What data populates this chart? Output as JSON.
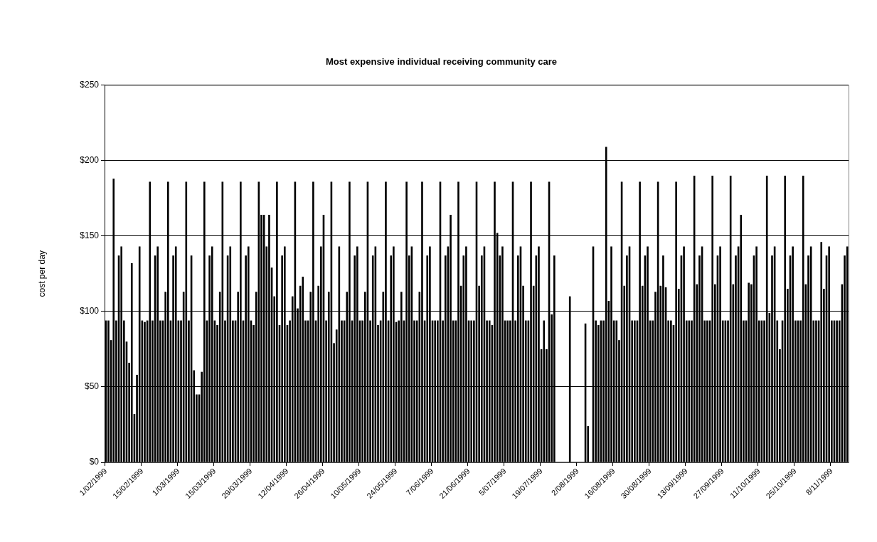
{
  "chart_data": {
    "type": "bar",
    "title": "Most expensive individual receiving community care",
    "ylabel": "cost per day",
    "color": "#000000",
    "grid": "y",
    "ylim": [
      0,
      250
    ],
    "yticks": [
      {
        "value": 0,
        "label": "$0"
      },
      {
        "value": 50,
        "label": "$50"
      },
      {
        "value": 100,
        "label": "$100"
      },
      {
        "value": 150,
        "label": "$150"
      },
      {
        "value": 200,
        "label": "$200"
      },
      {
        "value": 250,
        "label": "$250"
      }
    ],
    "categories": [
      "1/02/1999",
      null,
      null,
      null,
      null,
      null,
      null,
      null,
      null,
      null,
      null,
      null,
      null,
      null,
      "15/02/1999",
      null,
      null,
      null,
      null,
      null,
      null,
      null,
      null,
      null,
      null,
      null,
      null,
      null,
      "1/03/1999",
      null,
      null,
      null,
      null,
      null,
      null,
      null,
      null,
      null,
      null,
      null,
      null,
      null,
      "15/03/1999",
      null,
      null,
      null,
      null,
      null,
      null,
      null,
      null,
      null,
      null,
      null,
      null,
      null,
      "29/03/1999",
      null,
      null,
      null,
      null,
      null,
      null,
      null,
      null,
      null,
      null,
      null,
      null,
      null,
      "12/04/1999",
      null,
      null,
      null,
      null,
      null,
      null,
      null,
      null,
      null,
      null,
      null,
      null,
      null,
      "26/04/1999",
      null,
      null,
      null,
      null,
      null,
      null,
      null,
      null,
      null,
      null,
      null,
      null,
      null,
      "10/05/1999",
      null,
      null,
      null,
      null,
      null,
      null,
      null,
      null,
      null,
      null,
      null,
      null,
      null,
      "24/05/1999",
      null,
      null,
      null,
      null,
      null,
      null,
      null,
      null,
      null,
      null,
      null,
      null,
      null,
      "7/06/1999",
      null,
      null,
      null,
      null,
      null,
      null,
      null,
      null,
      null,
      null,
      null,
      null,
      null,
      "21/06/1999",
      null,
      null,
      null,
      null,
      null,
      null,
      null,
      null,
      null,
      null,
      null,
      null,
      null,
      "5/07/1999",
      null,
      null,
      null,
      null,
      null,
      null,
      null,
      null,
      null,
      null,
      null,
      null,
      null,
      "19/07/1999",
      null,
      null,
      null,
      null,
      null,
      null,
      null,
      null,
      null,
      null,
      null,
      null,
      null,
      "2/08/1999",
      null,
      null,
      null,
      null,
      null,
      null,
      null,
      null,
      null,
      null,
      null,
      null,
      null,
      "16/08/1999",
      null,
      null,
      null,
      null,
      null,
      null,
      null,
      null,
      null,
      null,
      null,
      null,
      null,
      "30/08/1999",
      null,
      null,
      null,
      null,
      null,
      null,
      null,
      null,
      null,
      null,
      null,
      null,
      null,
      "13/09/1999",
      null,
      null,
      null,
      null,
      null,
      null,
      null,
      null,
      null,
      null,
      null,
      null,
      null,
      "27/09/1999",
      null,
      null,
      null,
      null,
      null,
      null,
      null,
      null,
      null,
      null,
      null,
      null,
      null,
      "11/10/1999",
      null,
      null,
      null,
      null,
      null,
      null,
      null,
      null,
      null,
      null,
      null,
      null,
      null,
      "25/10/1999",
      null,
      null,
      null,
      null,
      null,
      null,
      null,
      null,
      null,
      null,
      null,
      null,
      null,
      "8/11/1999",
      null,
      null,
      null,
      null,
      null,
      null
    ],
    "values": [
      94,
      94,
      81,
      188,
      94,
      137,
      143,
      94,
      80,
      66,
      132,
      32,
      58,
      143,
      94,
      93,
      94,
      186,
      94,
      137,
      143,
      94,
      94,
      113,
      186,
      94,
      137,
      143,
      94,
      94,
      113,
      186,
      94,
      137,
      61,
      45,
      45,
      60,
      186,
      94,
      137,
      143,
      94,
      91,
      113,
      186,
      94,
      137,
      143,
      94,
      94,
      113,
      186,
      94,
      137,
      143,
      94,
      91,
      113,
      186,
      164,
      164,
      143,
      164,
      129,
      110,
      186,
      91,
      137,
      143,
      91,
      94,
      110,
      186,
      102,
      117,
      123,
      94,
      94,
      113,
      186,
      94,
      117,
      143,
      164,
      94,
      113,
      186,
      79,
      88,
      143,
      94,
      94,
      113,
      186,
      94,
      137,
      143,
      94,
      94,
      113,
      186,
      94,
      137,
      143,
      91,
      94,
      113,
      186,
      94,
      137,
      143,
      93,
      94,
      113,
      94,
      186,
      137,
      143,
      94,
      94,
      113,
      186,
      94,
      137,
      143,
      94,
      94,
      94,
      186,
      94,
      137,
      143,
      164,
      94,
      94,
      186,
      117,
      137,
      143,
      94,
      94,
      94,
      186,
      117,
      137,
      143,
      94,
      94,
      91,
      186,
      152,
      137,
      143,
      94,
      94,
      94,
      186,
      94,
      137,
      143,
      117,
      94,
      94,
      186,
      117,
      137,
      143,
      75,
      94,
      75,
      186,
      98,
      137,
      null,
      null,
      null,
      null,
      null,
      110,
      null,
      null,
      null,
      null,
      null,
      92,
      24,
      null,
      143,
      94,
      91,
      94,
      94,
      209,
      107,
      143,
      94,
      94,
      81,
      186,
      117,
      137,
      143,
      94,
      94,
      94,
      186,
      117,
      137,
      143,
      94,
      94,
      113,
      186,
      117,
      137,
      116,
      94,
      94,
      91,
      186,
      115,
      137,
      143,
      94,
      94,
      94,
      190,
      118,
      137,
      143,
      94,
      94,
      94,
      190,
      118,
      137,
      143,
      94,
      94,
      94,
      190,
      118,
      137,
      143,
      164,
      94,
      94,
      119,
      118,
      137,
      143,
      94,
      94,
      94,
      190,
      99,
      137,
      143,
      94,
      75,
      94,
      190,
      115,
      137,
      143,
      94,
      94,
      94,
      190,
      118,
      137,
      143,
      94,
      94,
      94,
      146,
      115,
      137,
      143,
      94,
      94,
      94,
      94,
      118,
      137,
      143
    ]
  }
}
